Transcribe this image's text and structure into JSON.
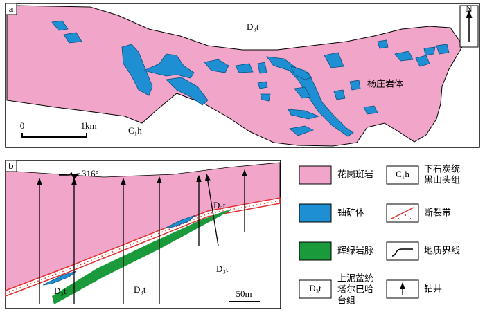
{
  "panel_a": {
    "label": "a",
    "north": "N",
    "units": {
      "upper": "D₃t",
      "lower": "C₁h",
      "intrusion": "杨庄岩体"
    },
    "scale": {
      "start": "0",
      "end": "1km"
    }
  },
  "panel_b": {
    "label": "b",
    "bearing": "316°",
    "unit_labels": [
      "D₃t",
      "D₃t",
      "D₃t",
      "D₃t"
    ],
    "scale": "50m"
  },
  "legend": [
    {
      "label": [
        "花岗斑岩"
      ]
    },
    {
      "symbol": "C₁h",
      "label": [
        "下石炭统",
        "黑山头组"
      ]
    },
    {
      "label": [
        "铀矿体"
      ]
    },
    {
      "label": [
        "断裂带"
      ]
    },
    {
      "label": [
        "辉绿岩脉"
      ]
    },
    {
      "label": [
        "地质界线"
      ]
    },
    {
      "symbol": "D₃t",
      "label": [
        "上泥盆统",
        "塔尔巴哈",
        "台组"
      ]
    },
    {
      "label": [
        "钻井"
      ]
    }
  ]
}
